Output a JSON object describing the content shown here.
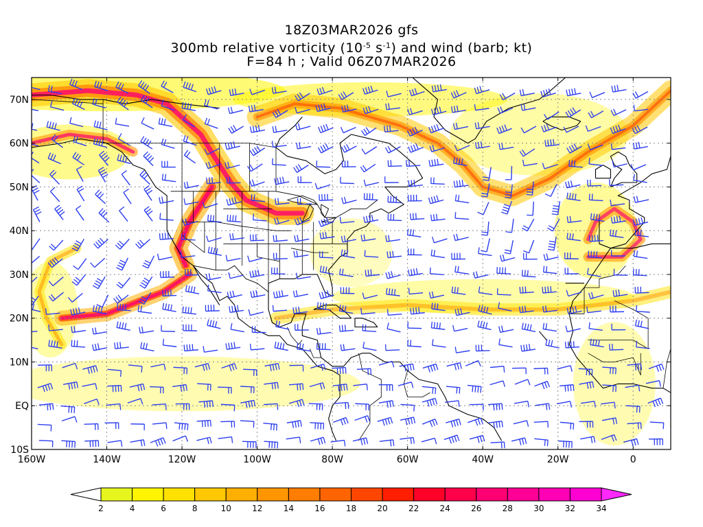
{
  "title": {
    "line1": "18Z03MAR2026 gfs",
    "line2_prefix": "300mb relative vorticity (10",
    "line2_exp1": "-5",
    "line2_mid": " s",
    "line2_exp2": "-1",
    "line2_suffix": ") and wind (barb; kt)",
    "line3": "F=84 h ; Valid 06Z07MAR2026"
  },
  "map": {
    "lon_range": [
      -160,
      10
    ],
    "lat_range": [
      -10,
      75
    ],
    "lat_labels": [
      {
        "lat": 70,
        "text": "70N"
      },
      {
        "lat": 60,
        "text": "60N"
      },
      {
        "lat": 50,
        "text": "50N"
      },
      {
        "lat": 40,
        "text": "40N"
      },
      {
        "lat": 30,
        "text": "30N"
      },
      {
        "lat": 20,
        "text": "20N"
      },
      {
        "lat": 10,
        "text": "10N"
      },
      {
        "lat": 0,
        "text": "EQ"
      },
      {
        "lat": -10,
        "text": "10S"
      }
    ],
    "lon_labels": [
      {
        "lon": -160,
        "text": "160W"
      },
      {
        "lon": -140,
        "text": "140W"
      },
      {
        "lon": -120,
        "text": "120W"
      },
      {
        "lon": -100,
        "text": "100W"
      },
      {
        "lon": -80,
        "text": "80W"
      },
      {
        "lon": -60,
        "text": "60W"
      },
      {
        "lon": -40,
        "text": "40W"
      },
      {
        "lon": -20,
        "text": "20W"
      },
      {
        "lon": 0,
        "text": "0"
      }
    ],
    "barb_color": "#2a3cf0",
    "coast_color": "#000000"
  },
  "colorbar": {
    "labels": [
      "2",
      "4",
      "6",
      "8",
      "10",
      "12",
      "14",
      "16",
      "18",
      "20",
      "22",
      "24",
      "26",
      "28",
      "30",
      "32",
      "34"
    ],
    "colors": [
      "#e6f51e",
      "#fff500",
      "#ffe100",
      "#ffc800",
      "#ffaf00",
      "#ff9600",
      "#ff7d00",
      "#ff6400",
      "#ff4600",
      "#ff1e00",
      "#ff0028",
      "#ff004b",
      "#ff0073",
      "#ff0096",
      "#ff00b4",
      "#ff00d2"
    ],
    "under_color": "#ffffff",
    "over_color": "#ff28ff"
  }
}
